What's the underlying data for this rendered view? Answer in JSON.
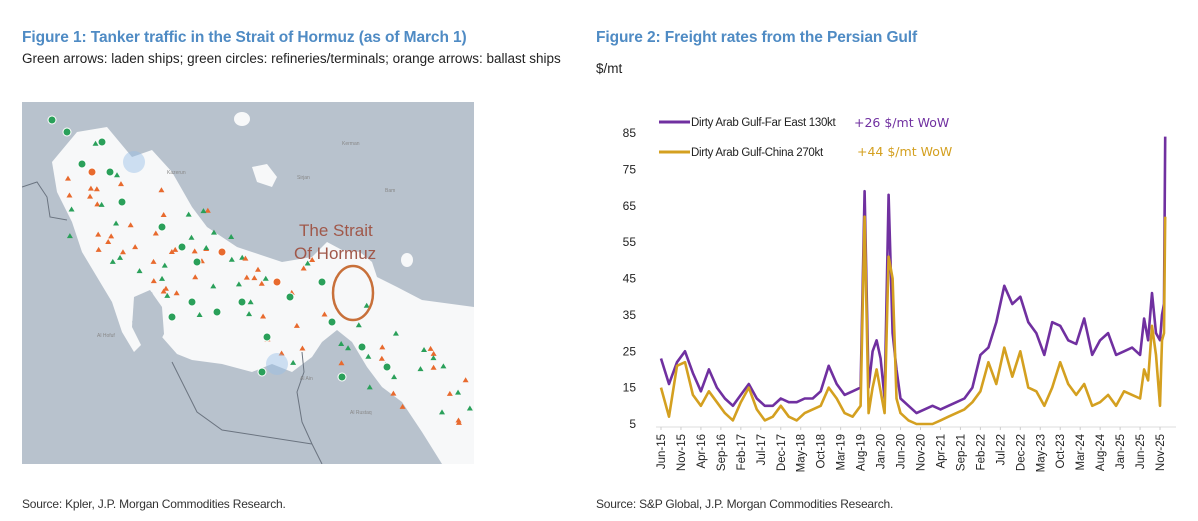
{
  "figure1": {
    "title": "Figure 1: Tanker traffic in the Strait of Hormuz (as of March 1)",
    "subtitle": "Green arrows: laden ships; green circles: refineries/terminals; orange arrows: ballast ships",
    "map_annotation": [
      "The Strait",
      "Of Hormuz"
    ],
    "place_labels": [
      "Kazerun",
      "Sirjan",
      "Bam",
      "Kerman",
      "Al Hofuf",
      "Al Ain",
      "Al Rustaq"
    ],
    "legend_colors": {
      "laden": "#2aa05a",
      "ballast": "#e86a2e",
      "land": "#b8c2cd",
      "water": "#f7f8f9",
      "highlight": "#c8703a"
    },
    "source": "Source: Kpler, J.P. Morgan Commodities Research."
  },
  "figure2": {
    "title": "Figure 2: Freight rates from the Persian Gulf",
    "unit": "$/mt",
    "source": "Source: S&P Global, J.P. Morgan Commodities Research."
  },
  "chart_data": {
    "type": "line",
    "title": "Figure 2: Freight rates from the Persian Gulf",
    "ylabel": "$/mt",
    "xlabel": "",
    "ylim": [
      5,
      85
    ],
    "yticks": [
      5,
      15,
      25,
      35,
      45,
      55,
      65,
      75,
      85
    ],
    "xticks": [
      "Jun-15",
      "Nov-15",
      "Apr-16",
      "Sep-16",
      "Feb-17",
      "Jul-17",
      "Dec-17",
      "May-18",
      "Oct-18",
      "Mar-19",
      "Aug-19",
      "Jan-20",
      "Jun-20",
      "Nov-20",
      "Apr-21",
      "Sep-21",
      "Feb-22",
      "Jul-22",
      "Dec-22",
      "May-23",
      "Oct-23",
      "Mar-24",
      "Aug-24",
      "Jan-25",
      "Jun-25",
      "Nov-25"
    ],
    "grid": false,
    "legend_position": "top-left",
    "annotations": [
      {
        "text": "+26 $/mt WoW",
        "series": "Dirty Arab Gulf-Far East 130kt",
        "color": "#7030a0"
      },
      {
        "text": "+44 $/mt WoW",
        "series": "Dirty Arab Gulf-China 270kt",
        "color": "#d4a020"
      }
    ],
    "x_months_from_jun15": [
      0,
      2,
      4,
      6,
      8,
      10,
      12,
      14,
      16,
      18,
      20,
      22,
      24,
      26,
      28,
      30,
      32,
      34,
      36,
      38,
      40,
      42,
      44,
      46,
      48,
      50,
      51,
      52,
      53,
      54,
      55,
      56,
      57,
      58,
      59,
      60,
      62,
      64,
      66,
      68,
      70,
      72,
      74,
      76,
      78,
      80,
      82,
      84,
      86,
      88,
      90,
      92,
      94,
      96,
      98,
      100,
      102,
      104,
      106,
      108,
      110,
      112,
      114,
      116,
      118,
      120,
      121,
      122,
      123,
      124,
      125,
      125.5,
      126,
      126.3
    ],
    "series": [
      {
        "name": "Dirty Arab Gulf-Far East 130kt",
        "color": "#7030a0",
        "values": [
          23,
          16,
          22,
          25,
          19,
          14,
          20,
          15,
          12,
          10,
          13,
          16,
          12,
          10,
          10,
          12,
          11,
          11,
          12,
          12,
          14,
          21,
          16,
          13,
          14,
          15,
          69,
          15,
          25,
          28,
          23,
          12,
          68,
          30,
          20,
          12,
          10,
          8,
          9,
          10,
          9,
          10,
          11,
          12,
          15,
          24,
          26,
          33,
          43,
          38,
          40,
          33,
          30,
          24,
          33,
          32,
          28,
          27,
          34,
          24,
          28,
          30,
          24,
          25,
          26,
          24,
          34,
          28,
          41,
          30,
          28,
          35,
          38,
          84
        ]
      },
      {
        "name": "Dirty Arab Gulf-China 270kt",
        "color": "#d4a020",
        "values": [
          15,
          7,
          21,
          22,
          13,
          10,
          14,
          11,
          8,
          6,
          11,
          15,
          9,
          6,
          7,
          10,
          7,
          6,
          8,
          9,
          10,
          15,
          12,
          8,
          7,
          10,
          62,
          8,
          15,
          20,
          14,
          8,
          51,
          45,
          12,
          8,
          6,
          5,
          5,
          5,
          6,
          7,
          8,
          9,
          11,
          14,
          22,
          16,
          26,
          18,
          25,
          15,
          14,
          10,
          15,
          22,
          16,
          13,
          16,
          10,
          11,
          13,
          10,
          14,
          13,
          12,
          20,
          17,
          32,
          24,
          10,
          28,
          30,
          62
        ]
      }
    ]
  }
}
